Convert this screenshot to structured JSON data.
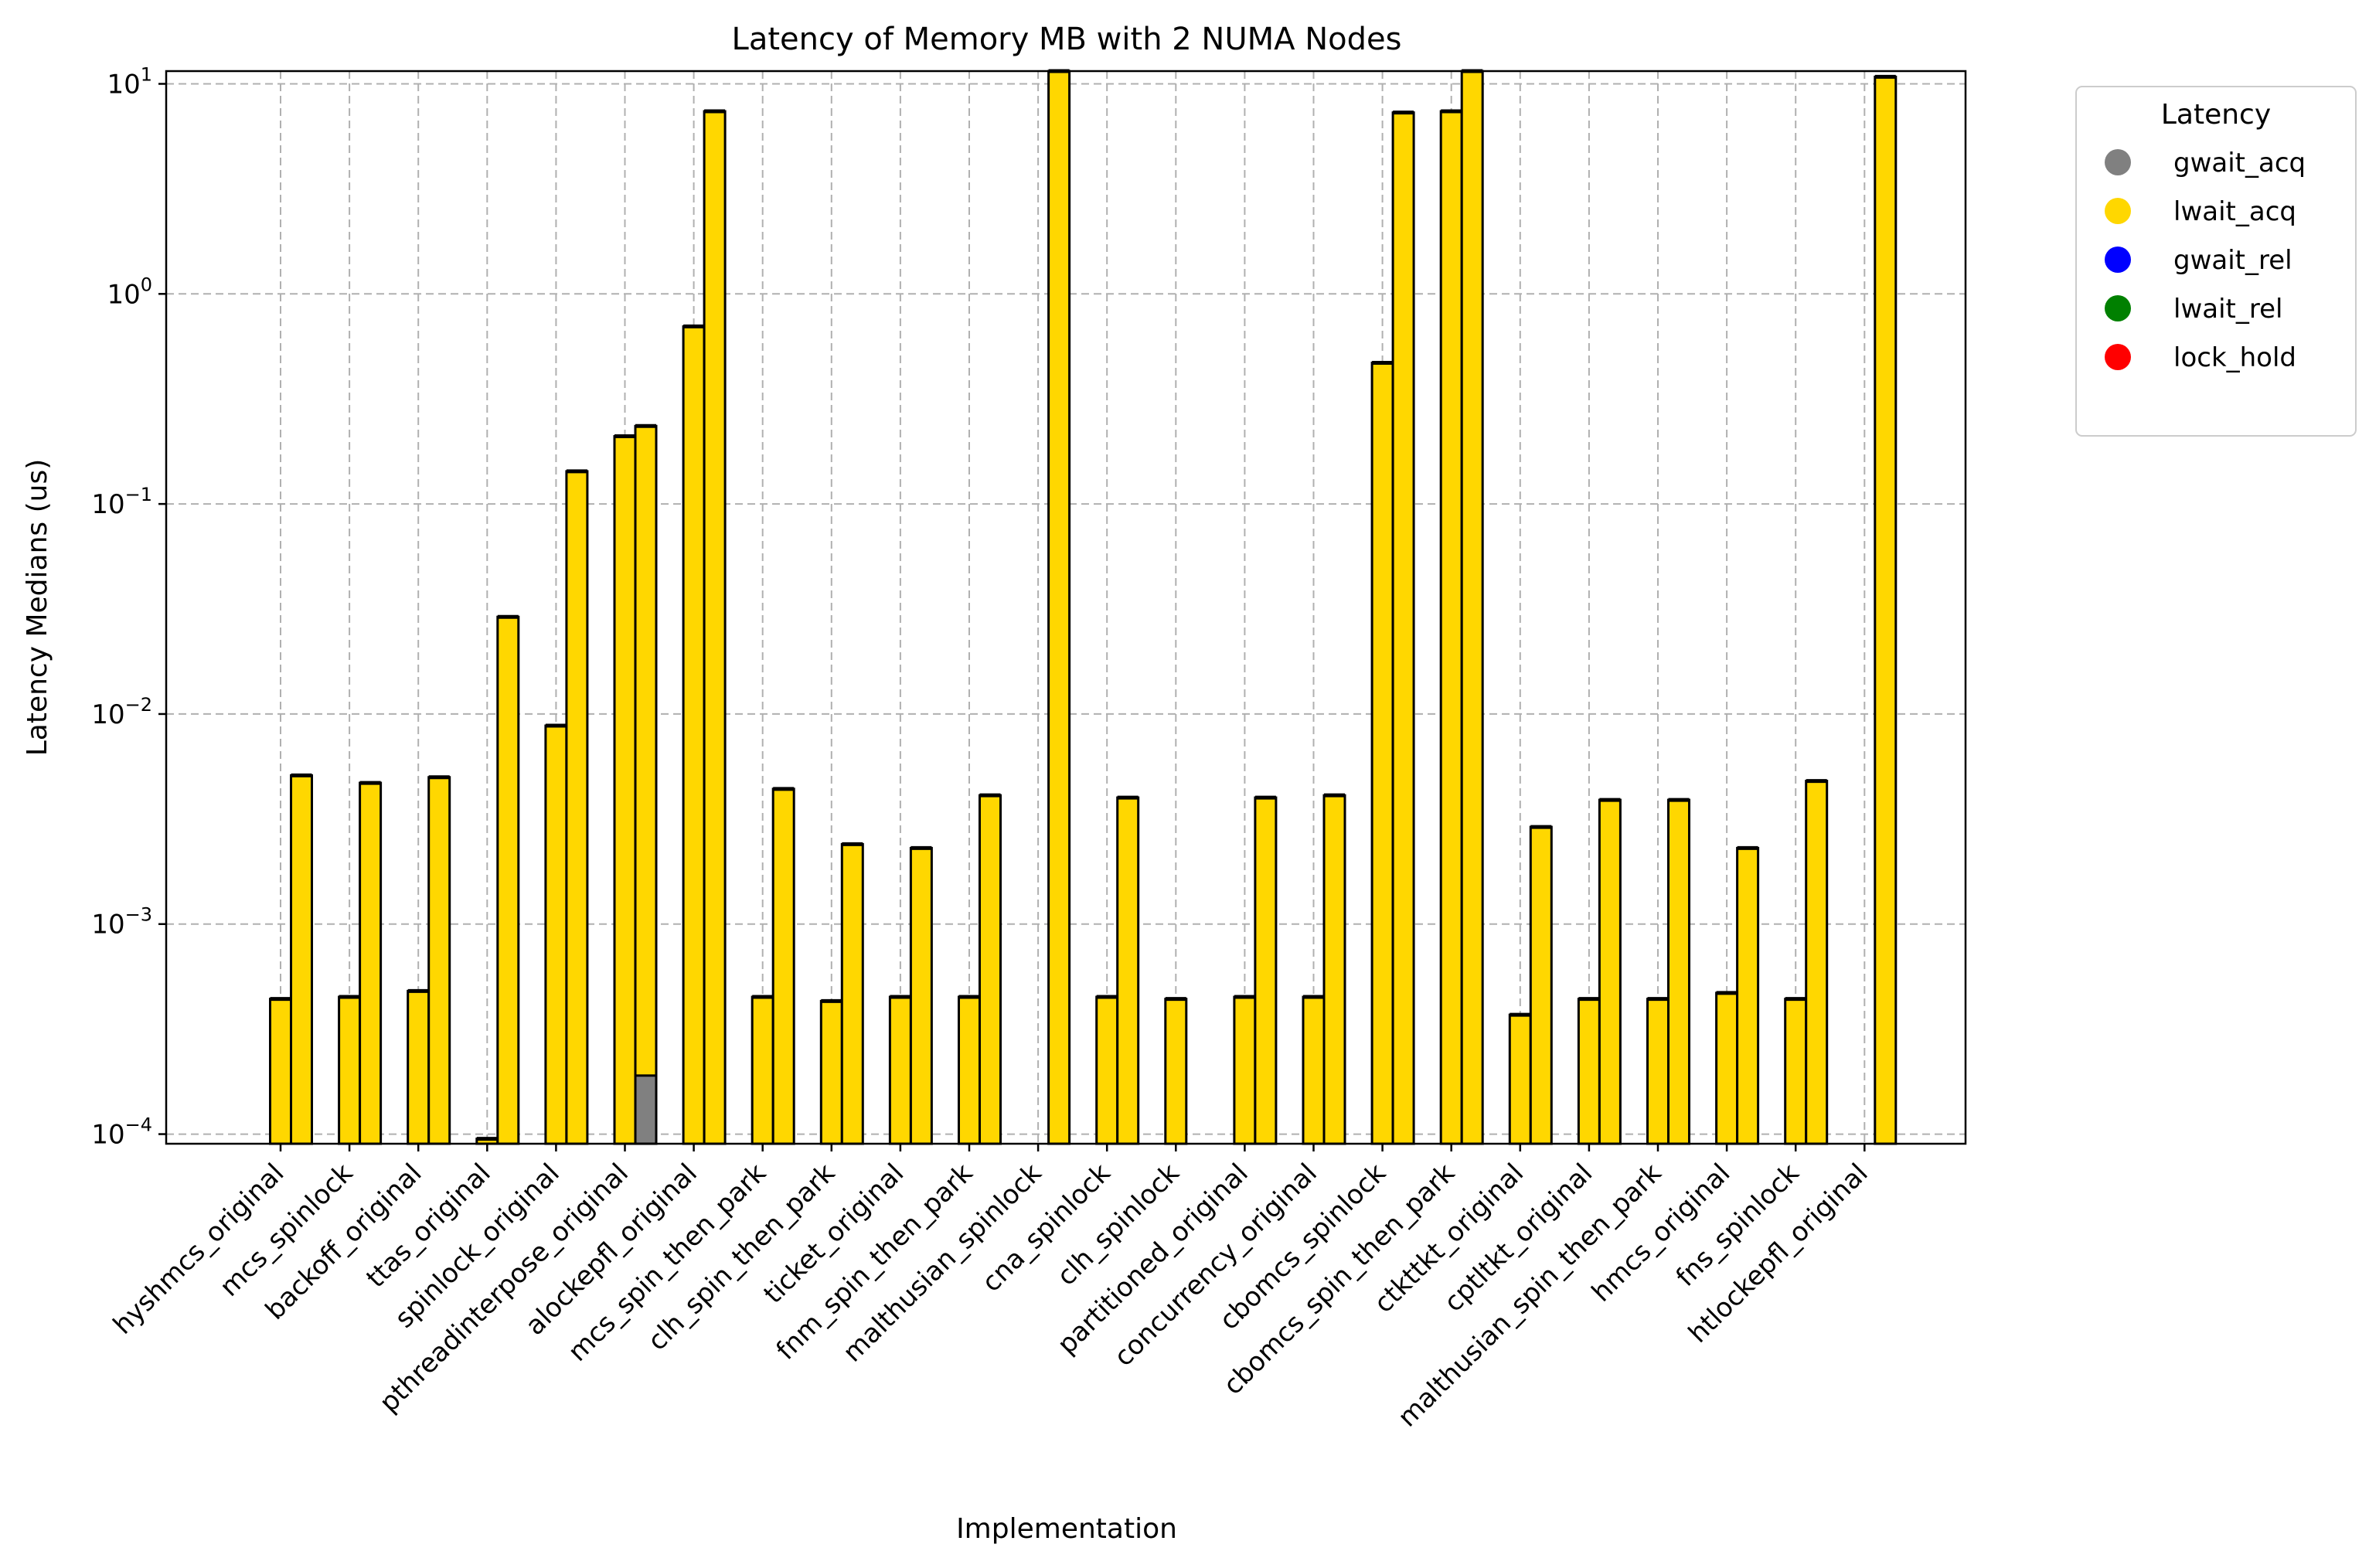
{
  "chart_data": {
    "type": "bar",
    "title": "Latency of Memory MB with 2 NUMA Nodes",
    "xlabel": "Implementation",
    "ylabel": "Latency Medians (us)",
    "yscale": "log",
    "ylim": [
      9e-05,
      11.5
    ],
    "ytick_values": [
      0.0001,
      0.001,
      0.01,
      0.1,
      1,
      10
    ],
    "ytick_exponents": [
      "−4",
      "−3",
      "−2",
      "−1",
      "0",
      "1"
    ],
    "ytick_base": "10",
    "grid": true,
    "legend": {
      "title": "Latency",
      "placement": "outside-right",
      "entries": [
        {
          "label": "gwait_acq",
          "color": "#808080"
        },
        {
          "label": "lwait_acq",
          "color": "#FFD700"
        },
        {
          "label": "gwait_rel",
          "color": "#0000FF"
        },
        {
          "label": "lwait_rel",
          "color": "#008000"
        },
        {
          "label": "lock_hold",
          "color": "#FF0000"
        }
      ]
    },
    "categories": [
      "hyshmcs_original",
      "mcs_spinlock",
      "backoff_original",
      "ttas_original",
      "spinlock_original",
      "pthreadinterpose_original",
      "alockepfl_original",
      "mcs_spin_then_park",
      "clh_spin_then_park",
      "ticket_original",
      "fnm_spin_then_park",
      "malthusian_spinlock",
      "cna_spinlock",
      "clh_spinlock",
      "partitioned_original",
      "concurrency_original",
      "cbomcs_spinlock",
      "cbomcs_spin_then_park",
      "ctkttkt_original",
      "cptltkt_original",
      "malthusian_spin_then_park",
      "hmcs_original",
      "fns_spinlock",
      "htlockepfl_original"
    ],
    "bar_pairs": [
      [
        0.00044,
        0.0051
      ],
      [
        0.00045,
        0.0047
      ],
      [
        0.00048,
        0.005
      ],
      [
        9.5e-05,
        0.029
      ],
      [
        0.0088,
        0.143
      ],
      [
        0.21,
        0.235
      ],
      [
        0.7,
        7.4
      ],
      [
        0.00045,
        0.0044
      ],
      [
        0.00043,
        0.0024
      ],
      [
        0.00045,
        0.0023
      ],
      [
        0.00045,
        0.0041
      ],
      [
        null,
        11.5
      ],
      [
        0.00045,
        0.004
      ],
      [
        0.00044,
        null
      ],
      [
        0.00045,
        0.004
      ],
      [
        0.00045,
        0.0041
      ],
      [
        0.47,
        7.3
      ],
      [
        7.4,
        11.5
      ],
      [
        0.00037,
        0.0029
      ],
      [
        0.00044,
        0.0039
      ],
      [
        0.00044,
        0.0039
      ],
      [
        0.00047,
        0.0023
      ],
      [
        0.00044,
        0.0048
      ],
      [
        null,
        10.8
      ]
    ],
    "center_pairs": [
      [
        4,
        5
      ],
      [
        5,
        6
      ],
      [
        6,
        7
      ],
      [
        7,
        8
      ],
      [
        8,
        9
      ],
      [
        9,
        10
      ],
      [
        10,
        11
      ],
      [
        11,
        12
      ],
      [
        12,
        13
      ],
      [
        13,
        14
      ],
      [
        14,
        15
      ],
      [
        15,
        16
      ],
      [
        16,
        17
      ],
      [
        17,
        18
      ],
      [
        18,
        19
      ],
      [
        19,
        20
      ],
      [
        20,
        21
      ],
      [
        21,
        22
      ],
      [
        22,
        23
      ],
      [
        23,
        24
      ],
      [
        24,
        25
      ],
      [
        25,
        26
      ],
      [
        26,
        27
      ],
      [
        27,
        28
      ]
    ],
    "gwait_acq_bar": {
      "category": "pthreadinterpose_original",
      "value": 0.00019
    }
  }
}
